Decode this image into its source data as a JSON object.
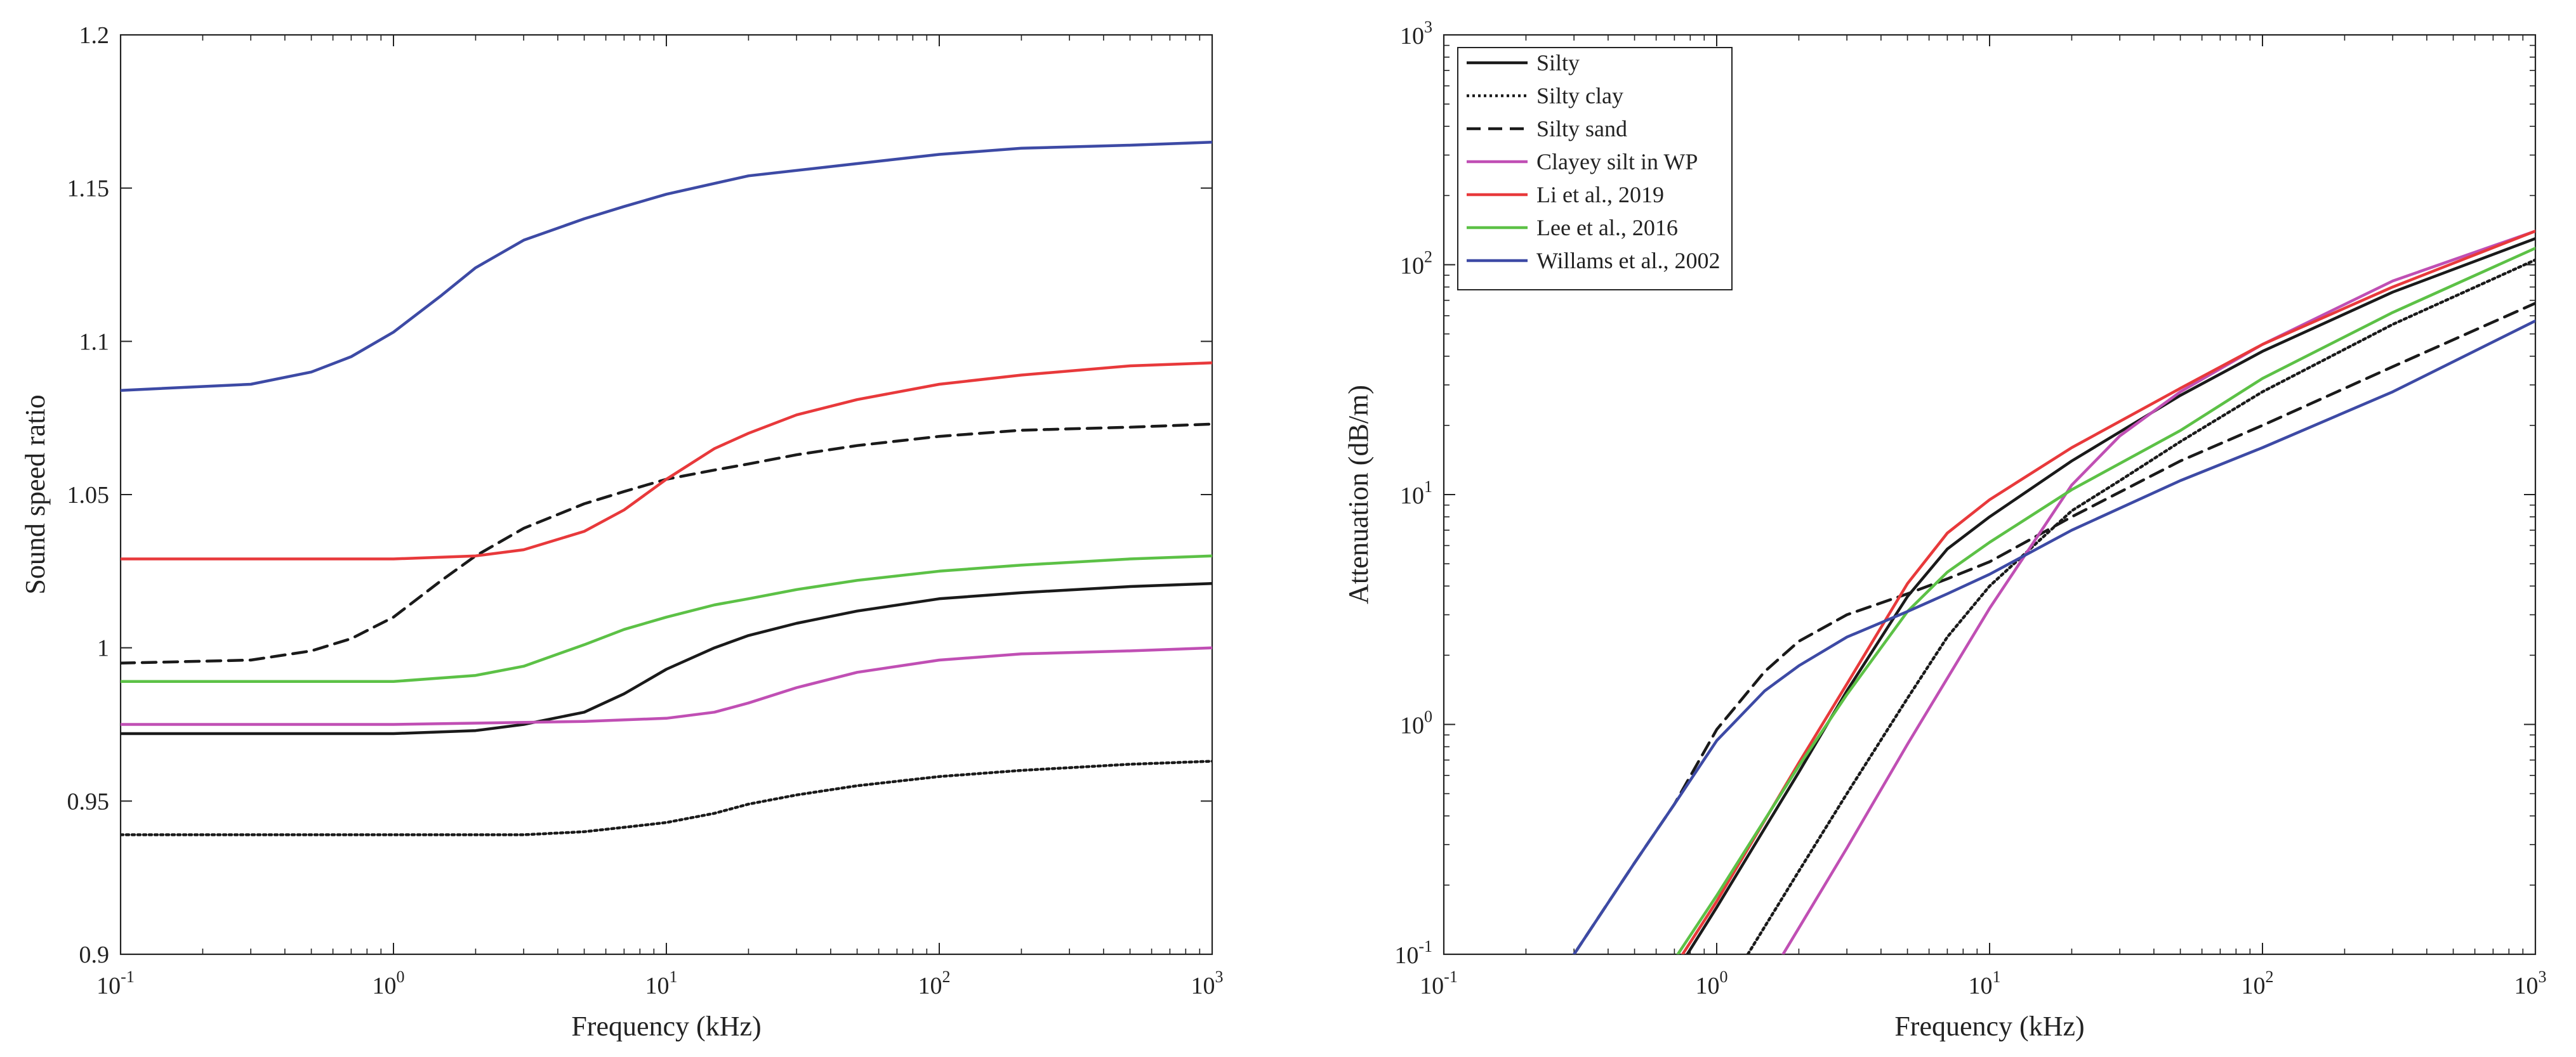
{
  "chart_data": [
    {
      "type": "line",
      "xscale": "log",
      "yscale": "linear",
      "xlabel": "Frequency (kHz)",
      "ylabel": "Sound speed ratio",
      "xlim": [
        0.1,
        1000
      ],
      "ylim": [
        0.9,
        1.2
      ],
      "yticks": [
        "0.9",
        "0.95",
        "1",
        "1.05",
        "1.1",
        "1.15",
        "1.2"
      ],
      "xticks": [
        {
          "base": "10",
          "exp": "-1"
        },
        {
          "base": "10",
          "exp": "0"
        },
        {
          "base": "10",
          "exp": "1"
        },
        {
          "base": "10",
          "exp": "2"
        },
        {
          "base": "10",
          "exp": "3"
        }
      ],
      "grid": false,
      "series": [
        {
          "name": "Silty",
          "color": "#1a1a1a",
          "dash": "solid",
          "x": [
            0.1,
            0.3,
            1,
            2,
            3,
            5,
            7,
            10,
            15,
            20,
            30,
            50,
            100,
            200,
            500,
            1000
          ],
          "y": [
            0.972,
            0.972,
            0.972,
            0.973,
            0.975,
            0.979,
            0.985,
            0.993,
            1.0,
            1.004,
            1.008,
            1.012,
            1.016,
            1.018,
            1.02,
            1.021
          ]
        },
        {
          "name": "Silty clay",
          "color": "#1a1a1a",
          "dash": "dotted",
          "x": [
            0.1,
            0.5,
            1,
            3,
            5,
            8,
            10,
            15,
            20,
            30,
            50,
            100,
            200,
            500,
            1000
          ],
          "y": [
            0.939,
            0.939,
            0.939,
            0.939,
            0.94,
            0.942,
            0.943,
            0.946,
            0.949,
            0.952,
            0.955,
            0.958,
            0.96,
            0.962,
            0.963
          ]
        },
        {
          "name": "Silty sand",
          "color": "#1a1a1a",
          "dash": "dashed",
          "x": [
            0.1,
            0.3,
            0.5,
            0.7,
            1,
            1.5,
            2,
            3,
            5,
            7,
            10,
            15,
            20,
            30,
            50,
            100,
            200,
            500,
            1000
          ],
          "y": [
            0.995,
            0.996,
            0.999,
            1.003,
            1.01,
            1.022,
            1.03,
            1.039,
            1.047,
            1.051,
            1.055,
            1.058,
            1.06,
            1.063,
            1.066,
            1.069,
            1.071,
            1.072,
            1.073
          ]
        },
        {
          "name": "Clayey silt in WP",
          "color": "#c04fb4",
          "dash": "solid",
          "x": [
            0.1,
            1,
            5,
            10,
            15,
            20,
            30,
            50,
            100,
            200,
            500,
            1000
          ],
          "y": [
            0.975,
            0.975,
            0.976,
            0.977,
            0.979,
            0.982,
            0.987,
            0.992,
            0.996,
            0.998,
            0.999,
            1.0
          ]
        },
        {
          "name": "Li et al., 2019",
          "color": "#e8393b",
          "dash": "solid",
          "x": [
            0.1,
            1,
            2,
            3,
            5,
            7,
            10,
            15,
            20,
            30,
            50,
            100,
            200,
            500,
            1000
          ],
          "y": [
            1.029,
            1.029,
            1.03,
            1.032,
            1.038,
            1.045,
            1.055,
            1.065,
            1.07,
            1.076,
            1.081,
            1.086,
            1.089,
            1.092,
            1.093
          ]
        },
        {
          "name": "Lee et al., 2016",
          "color": "#5cc146",
          "dash": "solid",
          "x": [
            0.1,
            1,
            2,
            3,
            5,
            7,
            10,
            15,
            20,
            30,
            50,
            100,
            200,
            500,
            1000
          ],
          "y": [
            0.989,
            0.989,
            0.991,
            0.994,
            1.001,
            1.006,
            1.01,
            1.014,
            1.016,
            1.019,
            1.022,
            1.025,
            1.027,
            1.029,
            1.03
          ]
        },
        {
          "name": "Willams et al., 2002",
          "color": "#3d4aa5",
          "dash": "solid",
          "x": [
            0.1,
            0.3,
            0.5,
            0.7,
            1,
            1.5,
            2,
            3,
            5,
            7,
            10,
            20,
            50,
            100,
            200,
            500,
            1000
          ],
          "y": [
            1.084,
            1.086,
            1.09,
            1.095,
            1.103,
            1.115,
            1.124,
            1.133,
            1.14,
            1.144,
            1.148,
            1.154,
            1.158,
            1.161,
            1.163,
            1.164,
            1.165
          ]
        }
      ]
    },
    {
      "type": "line",
      "xscale": "log",
      "yscale": "log",
      "xlabel": "Frequency (kHz)",
      "ylabel": "Attenuation (dB/m)",
      "xlim": [
        0.1,
        1000
      ],
      "ylim": [
        0.1,
        1000
      ],
      "xticks": [
        {
          "base": "10",
          "exp": "-1"
        },
        {
          "base": "10",
          "exp": "0"
        },
        {
          "base": "10",
          "exp": "1"
        },
        {
          "base": "10",
          "exp": "2"
        },
        {
          "base": "10",
          "exp": "3"
        }
      ],
      "yticks": [
        {
          "base": "10",
          "exp": "-1"
        },
        {
          "base": "10",
          "exp": "0"
        },
        {
          "base": "10",
          "exp": "1"
        },
        {
          "base": "10",
          "exp": "2"
        },
        {
          "base": "10",
          "exp": "3"
        }
      ],
      "grid": false,
      "legend": "top-left",
      "series": [
        {
          "name": "Silty",
          "color": "#1a1a1a",
          "dash": "solid",
          "x": [
            0.78,
            1,
            2,
            3,
            5,
            7,
            10,
            20,
            50,
            100,
            300,
            1000
          ],
          "y": [
            0.1,
            0.16,
            0.62,
            1.4,
            3.6,
            5.8,
            8.0,
            14,
            27,
            42,
            76,
            130
          ]
        },
        {
          "name": "Silty clay",
          "color": "#1a1a1a",
          "dash": "dotted",
          "x": [
            1.3,
            2,
            3,
            5,
            7,
            10,
            20,
            30,
            50,
            100,
            300,
            1000
          ],
          "y": [
            0.1,
            0.23,
            0.5,
            1.3,
            2.4,
            4.0,
            8.5,
            11.5,
            17,
            28,
            55,
            105
          ]
        },
        {
          "name": "Silty sand",
          "color": "#1a1a1a",
          "dash": "dashed",
          "x": [
            0.3,
            0.5,
            0.7,
            1,
            1.5,
            2,
            3,
            5,
            7,
            10,
            20,
            50,
            100,
            300,
            1000
          ],
          "y": [
            0.1,
            0.25,
            0.45,
            0.95,
            1.7,
            2.3,
            3.0,
            3.7,
            4.3,
            5.1,
            8.0,
            14,
            20,
            36,
            68
          ]
        },
        {
          "name": "Clayey silt in WP",
          "color": "#c04fb4",
          "dash": "solid",
          "x": [
            1.75,
            2,
            3,
            5,
            10,
            20,
            30,
            50,
            100,
            300,
            1000
          ],
          "y": [
            0.1,
            0.13,
            0.29,
            0.82,
            3.2,
            11,
            18,
            28,
            45,
            85,
            140
          ]
        },
        {
          "name": "Li et al., 2019",
          "color": "#e8393b",
          "dash": "solid",
          "x": [
            0.75,
            1,
            2,
            3,
            5,
            7,
            10,
            20,
            50,
            100,
            300,
            1000
          ],
          "y": [
            0.1,
            0.17,
            0.68,
            1.5,
            4.1,
            6.8,
            9.5,
            16,
            29,
            45,
            80,
            140
          ]
        },
        {
          "name": "Lee et al., 2016",
          "color": "#5cc146",
          "dash": "solid",
          "x": [
            0.72,
            1,
            2,
            3,
            5,
            7,
            10,
            20,
            50,
            100,
            300,
            1000
          ],
          "y": [
            0.1,
            0.18,
            0.66,
            1.35,
            3.1,
            4.6,
            6.2,
            10.5,
            19,
            32,
            62,
            118
          ]
        },
        {
          "name": "Willams et al., 2002",
          "color": "#3d4aa5",
          "dash": "solid",
          "x": [
            0.3,
            0.5,
            0.7,
            1,
            1.5,
            2,
            3,
            5,
            7,
            10,
            20,
            50,
            100,
            300,
            1000
          ],
          "y": [
            0.1,
            0.25,
            0.45,
            0.85,
            1.4,
            1.8,
            2.4,
            3.1,
            3.7,
            4.5,
            7.0,
            11.5,
            16,
            28,
            57
          ]
        }
      ]
    }
  ]
}
